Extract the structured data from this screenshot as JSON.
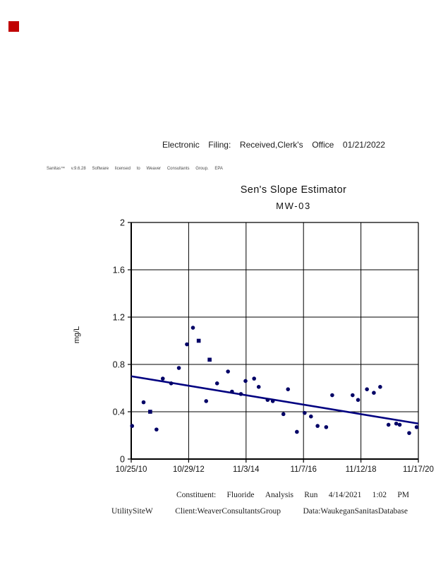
{
  "stamp": {
    "color": "#c00000"
  },
  "header": {
    "words": [
      "Electronic",
      "Filing:",
      "Received,Clerk's",
      "Office",
      "01/21/2022"
    ]
  },
  "watermark": {
    "words": [
      "Sanitas™",
      "v.9.6.28",
      "Software",
      "licensed",
      "to",
      "Weaver",
      "Consultants",
      "Group.",
      "EPA"
    ]
  },
  "chart_data": {
    "type": "scatter",
    "title": "Sen's Slope Estimator",
    "subtitle": "MW-03",
    "xlabel": "",
    "ylabel": "mg/L",
    "ylim": [
      0,
      2
    ],
    "yticks": [
      "0",
      "0.4",
      "0.8",
      "1.2",
      "1.6",
      "2"
    ],
    "xticks": [
      "10/25/10",
      "10/29/12",
      "11/3/14",
      "11/7/16",
      "11/12/18",
      "11/17/20"
    ],
    "grid": true,
    "legend": false,
    "point_color": "#000066",
    "trend_color": "#000080",
    "axis_color": "#000000",
    "trend": {
      "start": 0.7,
      "end": 0.3
    },
    "points": [
      [
        0.003,
        0.28,
        "c"
      ],
      [
        0.043,
        0.48,
        "c"
      ],
      [
        0.066,
        0.4,
        "s"
      ],
      [
        0.088,
        0.25,
        "c"
      ],
      [
        0.11,
        0.68,
        "c"
      ],
      [
        0.139,
        0.64,
        "c"
      ],
      [
        0.166,
        0.77,
        "c"
      ],
      [
        0.194,
        0.97,
        "c"
      ],
      [
        0.215,
        1.11,
        "c"
      ],
      [
        0.235,
        1.0,
        "s"
      ],
      [
        0.261,
        0.49,
        "c"
      ],
      [
        0.273,
        0.84,
        "s"
      ],
      [
        0.299,
        0.64,
        "c"
      ],
      [
        0.337,
        0.74,
        "c"
      ],
      [
        0.351,
        0.57,
        "c"
      ],
      [
        0.382,
        0.55,
        "c"
      ],
      [
        0.398,
        0.66,
        "c"
      ],
      [
        0.428,
        0.68,
        "c"
      ],
      [
        0.444,
        0.61,
        "c"
      ],
      [
        0.475,
        0.5,
        "c"
      ],
      [
        0.493,
        0.49,
        "c"
      ],
      [
        0.53,
        0.38,
        "c"
      ],
      [
        0.546,
        0.59,
        "c"
      ],
      [
        0.577,
        0.23,
        "c"
      ],
      [
        0.604,
        0.39,
        "c"
      ],
      [
        0.626,
        0.36,
        "c"
      ],
      [
        0.649,
        0.28,
        "c"
      ],
      [
        0.679,
        0.27,
        "c"
      ],
      [
        0.7,
        0.54,
        "c"
      ],
      [
        0.771,
        0.54,
        "c"
      ],
      [
        0.79,
        0.5,
        "c"
      ],
      [
        0.821,
        0.59,
        "c"
      ],
      [
        0.845,
        0.56,
        "c"
      ],
      [
        0.867,
        0.61,
        "c"
      ],
      [
        0.896,
        0.29,
        "c"
      ],
      [
        0.923,
        0.3,
        "c"
      ],
      [
        0.935,
        0.29,
        "c"
      ],
      [
        0.968,
        0.22,
        "c"
      ],
      [
        0.994,
        0.27,
        "c"
      ]
    ]
  },
  "footer": {
    "row1": [
      "Constituent:",
      "Fluoride",
      "Analysis",
      "Run",
      "4/14/2021",
      "1:02",
      "PM"
    ],
    "row2": [
      "UtilitySiteW",
      "Client:WeaverConsultantsGroup",
      "Data:WaukeganSanitasDatabase"
    ]
  }
}
